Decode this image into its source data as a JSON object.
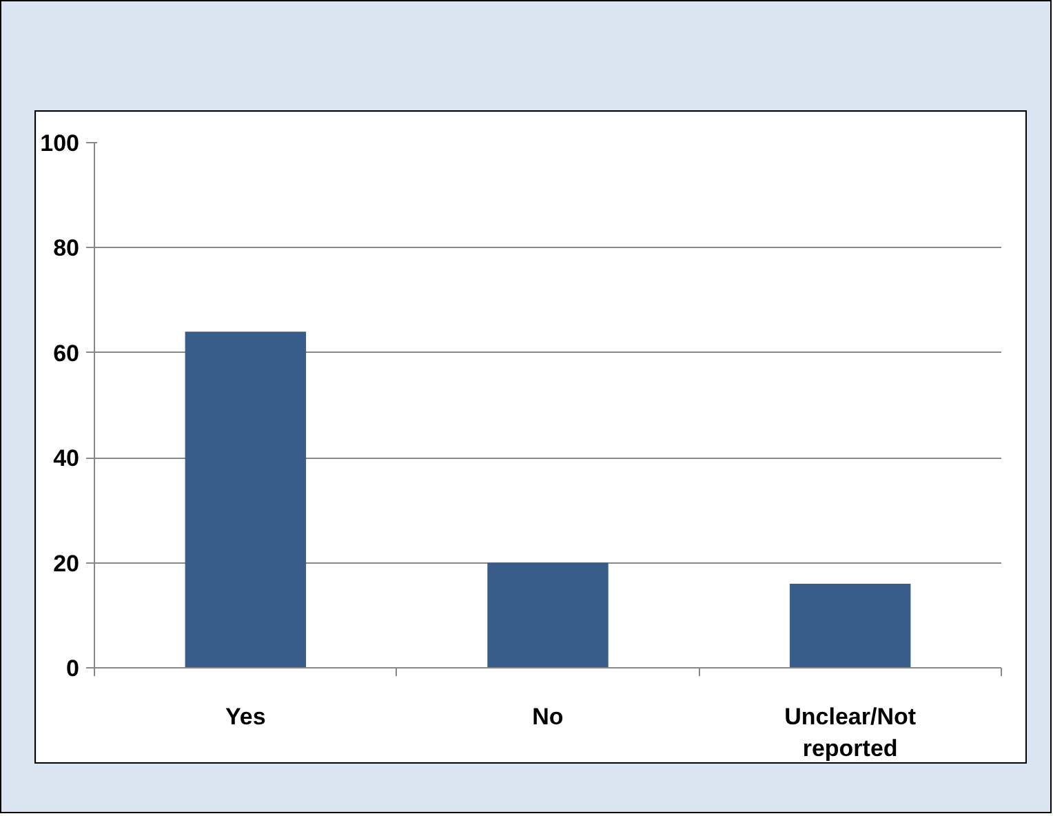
{
  "chart_data": {
    "type": "bar",
    "categories": [
      "Yes",
      "No",
      "Unclear/Not reported"
    ],
    "values": [
      64,
      20,
      16
    ],
    "color": "#385d8a",
    "ylim": [
      0,
      100
    ],
    "yticks": [
      0,
      20,
      40,
      60,
      80,
      100
    ],
    "grid": "y"
  }
}
